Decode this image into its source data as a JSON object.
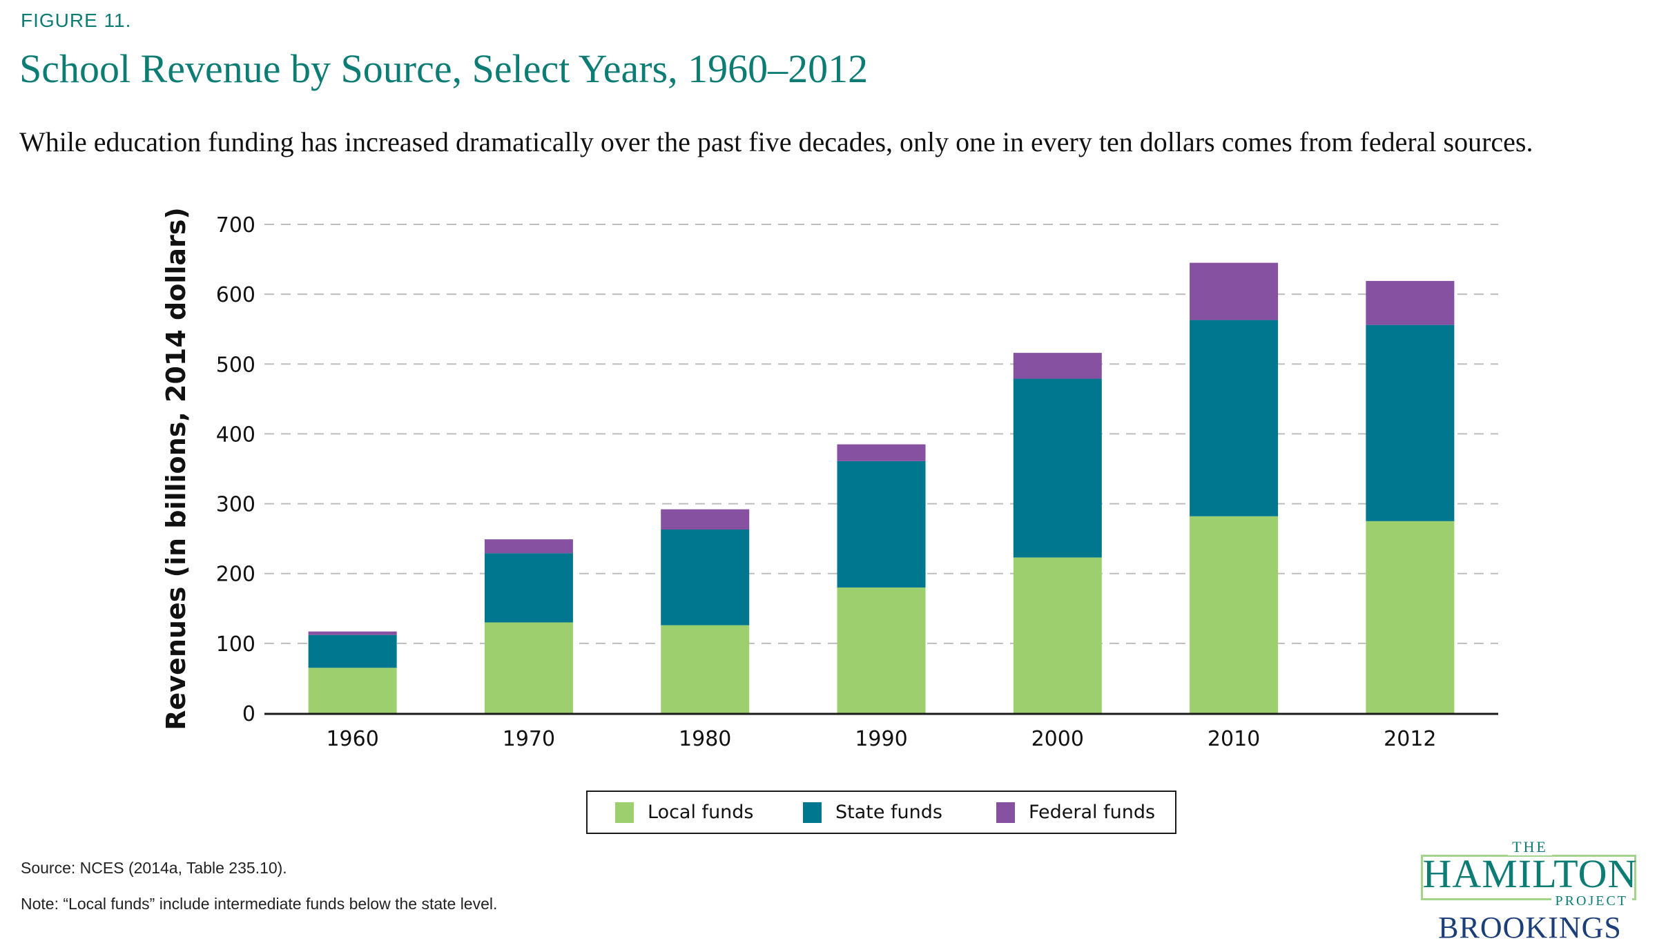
{
  "figure_label": "FIGURE 11.",
  "title": "School Revenue by Source, Select Years, 1960–2012",
  "subtitle": "While education funding has increased dramatically over the past five decades, only one in every ten dollars comes from federal sources.",
  "source": "Source: NCES (2014a, Table 235.10).",
  "note": "Note: “Local funds” include intermediate funds below the state level.",
  "logo": {
    "the": "THE",
    "hamilton": "HAMILTON",
    "project": "PROJECT",
    "brookings": "BROOKINGS"
  },
  "chart_data": {
    "type": "bar",
    "stacked": true,
    "title": "School Revenue by Source, Select Years, 1960–2012",
    "xlabel": "",
    "ylabel": "Revenues (in billions, 2014 dollars)",
    "ylim": [
      0,
      700
    ],
    "yticks": [
      0,
      100,
      200,
      300,
      400,
      500,
      600,
      700
    ],
    "grid": true,
    "legend_position": "bottom-center",
    "categories": [
      "1960",
      "1970",
      "1980",
      "1990",
      "2000",
      "2010",
      "2012"
    ],
    "series": [
      {
        "name": "Local funds",
        "color": "#9ecf6f",
        "values": [
          65,
          130,
          126,
          180,
          223,
          282,
          275
        ]
      },
      {
        "name": "State funds",
        "color": "#00778f",
        "values": [
          47,
          99,
          137,
          181,
          256,
          281,
          281
        ]
      },
      {
        "name": "Federal funds",
        "color": "#8651a0",
        "values": [
          5,
          20,
          29,
          24,
          37,
          82,
          63
        ]
      }
    ]
  }
}
